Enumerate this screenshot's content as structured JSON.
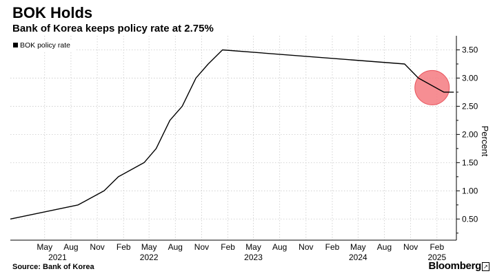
{
  "header": {
    "title": "BOK Holds",
    "subtitle": "Bank of Korea keeps policy rate at 2.75%"
  },
  "footer": {
    "source": "Source: Bank of Korea",
    "brand": "Bloomberg"
  },
  "chart_data": {
    "type": "line",
    "title": "BOK Holds",
    "subtitle": "Bank of Korea keeps policy rate at 2.75%",
    "ylabel": "Percent",
    "xlabel": "",
    "ylim": [
      0.125,
      3.75
    ],
    "xlim": [
      "2021-01-01",
      "2025-04-10"
    ],
    "yticks": [
      0.5,
      1.0,
      1.5,
      2.0,
      2.5,
      3.0,
      3.5
    ],
    "ytick_labels": [
      "0.50",
      "1.00",
      "1.50",
      "2.00",
      "2.50",
      "3.00",
      "3.50"
    ],
    "xticks": [
      "2021-05-01",
      "2021-08-01",
      "2021-11-01",
      "2022-02-01",
      "2022-05-01",
      "2022-08-01",
      "2022-11-01",
      "2023-02-01",
      "2023-05-01",
      "2023-08-01",
      "2023-11-01",
      "2024-02-01",
      "2024-05-01",
      "2024-08-01",
      "2024-11-01",
      "2025-02-01"
    ],
    "xtick_labels": [
      "May",
      "Aug",
      "Nov",
      "Feb",
      "May",
      "Aug",
      "Nov",
      "Feb",
      "May",
      "Aug",
      "Nov",
      "Feb",
      "May",
      "Aug",
      "Nov",
      "Feb"
    ],
    "year_labels": [
      {
        "label": "2021",
        "date": "2021-06-15"
      },
      {
        "label": "2022",
        "date": "2022-05-01"
      },
      {
        "label": "2023",
        "date": "2023-05-01"
      },
      {
        "label": "2024",
        "date": "2024-05-01"
      },
      {
        "label": "2025",
        "date": "2025-02-01"
      }
    ],
    "grid": true,
    "legend_position": "top-left",
    "series": [
      {
        "name": "BOK policy rate",
        "color": "#000000",
        "step": true,
        "points": [
          {
            "x": "2021-01-01",
            "y": 0.5
          },
          {
            "x": "2021-08-26",
            "y": 0.75
          },
          {
            "x": "2021-11-25",
            "y": 1.0
          },
          {
            "x": "2022-01-14",
            "y": 1.25
          },
          {
            "x": "2022-04-14",
            "y": 1.5
          },
          {
            "x": "2022-05-26",
            "y": 1.75
          },
          {
            "x": "2022-07-13",
            "y": 2.25
          },
          {
            "x": "2022-08-25",
            "y": 2.5
          },
          {
            "x": "2022-10-12",
            "y": 3.0
          },
          {
            "x": "2022-11-24",
            "y": 3.25
          },
          {
            "x": "2023-01-13",
            "y": 3.5
          },
          {
            "x": "2024-10-11",
            "y": 3.25
          },
          {
            "x": "2024-11-28",
            "y": 3.0
          },
          {
            "x": "2025-02-25",
            "y": 2.75
          },
          {
            "x": "2025-04-01",
            "y": 2.75
          }
        ]
      }
    ],
    "annotations": [
      {
        "type": "circle-highlight",
        "x": "2025-01-15",
        "y": 2.83,
        "color": "#f47a80"
      }
    ]
  }
}
